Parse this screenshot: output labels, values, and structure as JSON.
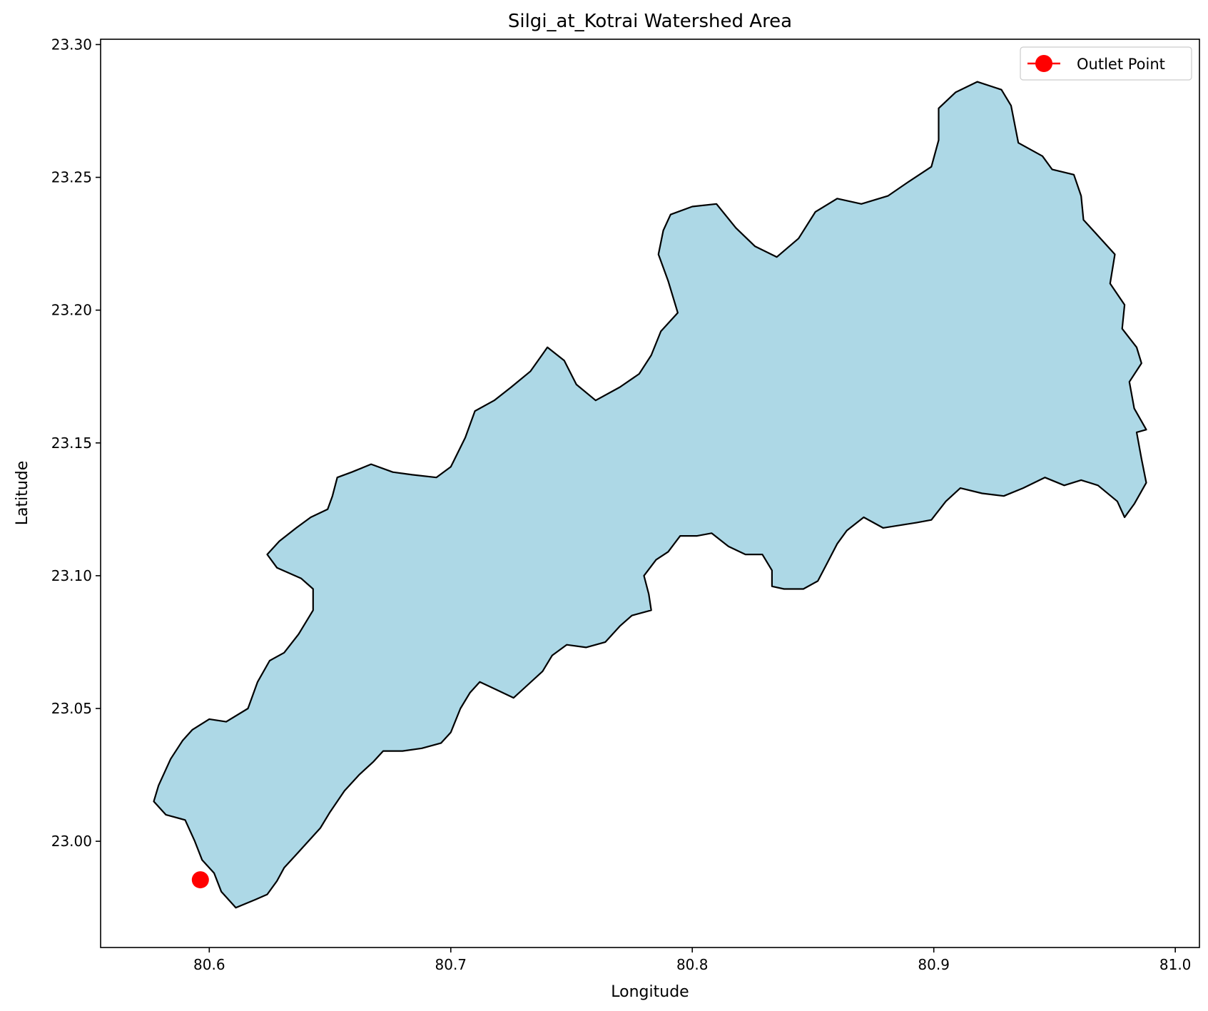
{
  "chart_data": {
    "type": "map",
    "title": "Silgi_at_Kotrai Watershed Area",
    "xlabel": "Longitude",
    "ylabel": "Latitude",
    "xlim": [
      80.555,
      81.01
    ],
    "ylim": [
      22.96,
      23.302
    ],
    "xticks": [
      80.6,
      80.7,
      80.8,
      80.9,
      81.0
    ],
    "xtick_labels": [
      "80.6",
      "80.7",
      "80.8",
      "80.9",
      "81.0"
    ],
    "yticks": [
      23.0,
      23.05,
      23.1,
      23.15,
      23.2,
      23.25,
      23.3
    ],
    "ytick_labels": [
      "23.00",
      "23.05",
      "23.10",
      "23.15",
      "23.20",
      "23.25",
      "23.30"
    ],
    "grid": false,
    "legend": {
      "position": "top-right",
      "entries": [
        {
          "label": "Outlet Point",
          "color": "#ff0000",
          "marker": "circle"
        }
      ]
    },
    "watershed": {
      "fill": "#add8e6",
      "edge": "#000000",
      "boundary": [
        [
          80.611,
          22.975
        ],
        [
          80.619,
          22.978
        ],
        [
          80.624,
          22.98
        ],
        [
          80.628,
          22.985
        ],
        [
          80.631,
          22.99
        ],
        [
          80.636,
          22.995
        ],
        [
          80.641,
          23.0
        ],
        [
          80.646,
          23.005
        ],
        [
          80.65,
          23.011
        ],
        [
          80.656,
          23.019
        ],
        [
          80.662,
          23.025
        ],
        [
          80.668,
          23.03
        ],
        [
          80.672,
          23.034
        ],
        [
          80.68,
          23.034
        ],
        [
          80.688,
          23.035
        ],
        [
          80.696,
          23.037
        ],
        [
          80.7,
          23.041
        ],
        [
          80.704,
          23.05
        ],
        [
          80.708,
          23.056
        ],
        [
          80.712,
          23.06
        ],
        [
          80.719,
          23.057
        ],
        [
          80.726,
          23.054
        ],
        [
          80.732,
          23.059
        ],
        [
          80.738,
          23.064
        ],
        [
          80.742,
          23.07
        ],
        [
          80.748,
          23.074
        ],
        [
          80.756,
          23.073
        ],
        [
          80.764,
          23.075
        ],
        [
          80.77,
          23.081
        ],
        [
          80.775,
          23.085
        ],
        [
          80.783,
          23.087
        ],
        [
          80.782,
          23.093
        ],
        [
          80.78,
          23.1
        ],
        [
          80.785,
          23.106
        ],
        [
          80.79,
          23.109
        ],
        [
          80.795,
          23.115
        ],
        [
          80.802,
          23.115
        ],
        [
          80.808,
          23.116
        ],
        [
          80.815,
          23.111
        ],
        [
          80.822,
          23.108
        ],
        [
          80.829,
          23.108
        ],
        [
          80.833,
          23.102
        ],
        [
          80.833,
          23.096
        ],
        [
          80.838,
          23.095
        ],
        [
          80.846,
          23.095
        ],
        [
          80.852,
          23.098
        ],
        [
          80.856,
          23.105
        ],
        [
          80.86,
          23.112
        ],
        [
          80.864,
          23.117
        ],
        [
          80.871,
          23.122
        ],
        [
          80.879,
          23.118
        ],
        [
          80.886,
          23.119
        ],
        [
          80.893,
          23.12
        ],
        [
          80.899,
          23.121
        ],
        [
          80.905,
          23.128
        ],
        [
          80.911,
          23.133
        ],
        [
          80.92,
          23.131
        ],
        [
          80.929,
          23.13
        ],
        [
          80.937,
          23.133
        ],
        [
          80.946,
          23.137
        ],
        [
          80.954,
          23.134
        ],
        [
          80.961,
          23.136
        ],
        [
          80.968,
          23.134
        ],
        [
          80.976,
          23.128
        ],
        [
          80.979,
          23.122
        ],
        [
          80.983,
          23.127
        ],
        [
          80.988,
          23.135
        ],
        [
          80.986,
          23.144
        ],
        [
          80.984,
          23.154
        ],
        [
          80.988,
          23.155
        ],
        [
          80.983,
          23.163
        ],
        [
          80.981,
          23.173
        ],
        [
          80.986,
          23.18
        ],
        [
          80.984,
          23.186
        ],
        [
          80.978,
          23.193
        ],
        [
          80.979,
          23.202
        ],
        [
          80.973,
          23.21
        ],
        [
          80.975,
          23.221
        ],
        [
          80.967,
          23.229
        ],
        [
          80.962,
          23.234
        ],
        [
          80.961,
          23.243
        ],
        [
          80.958,
          23.251
        ],
        [
          80.949,
          23.253
        ],
        [
          80.945,
          23.258
        ],
        [
          80.935,
          23.263
        ],
        [
          80.932,
          23.277
        ],
        [
          80.928,
          23.283
        ],
        [
          80.918,
          23.286
        ],
        [
          80.909,
          23.282
        ],
        [
          80.902,
          23.276
        ],
        [
          80.902,
          23.264
        ],
        [
          80.899,
          23.254
        ],
        [
          80.889,
          23.248
        ],
        [
          80.881,
          23.243
        ],
        [
          80.87,
          23.24
        ],
        [
          80.86,
          23.242
        ],
        [
          80.851,
          23.237
        ],
        [
          80.844,
          23.227
        ],
        [
          80.835,
          23.22
        ],
        [
          80.826,
          23.224
        ],
        [
          80.818,
          23.231
        ],
        [
          80.81,
          23.24
        ],
        [
          80.8,
          23.239
        ],
        [
          80.791,
          23.236
        ],
        [
          80.788,
          23.23
        ],
        [
          80.786,
          23.221
        ],
        [
          80.79,
          23.211
        ],
        [
          80.794,
          23.199
        ],
        [
          80.787,
          23.192
        ],
        [
          80.783,
          23.183
        ],
        [
          80.778,
          23.176
        ],
        [
          80.77,
          23.171
        ],
        [
          80.76,
          23.166
        ],
        [
          80.752,
          23.172
        ],
        [
          80.747,
          23.181
        ],
        [
          80.74,
          23.186
        ],
        [
          80.733,
          23.177
        ],
        [
          80.725,
          23.171
        ],
        [
          80.718,
          23.166
        ],
        [
          80.71,
          23.162
        ],
        [
          80.706,
          23.152
        ],
        [
          80.7,
          23.141
        ],
        [
          80.694,
          23.137
        ],
        [
          80.684,
          23.138
        ],
        [
          80.676,
          23.139
        ],
        [
          80.667,
          23.142
        ],
        [
          80.659,
          23.139
        ],
        [
          80.653,
          23.137
        ],
        [
          80.651,
          23.13
        ],
        [
          80.649,
          23.125
        ],
        [
          80.642,
          23.122
        ],
        [
          80.636,
          23.118
        ],
        [
          80.629,
          23.113
        ],
        [
          80.624,
          23.108
        ],
        [
          80.628,
          23.103
        ],
        [
          80.638,
          23.099
        ],
        [
          80.643,
          23.095
        ],
        [
          80.643,
          23.087
        ],
        [
          80.637,
          23.078
        ],
        [
          80.631,
          23.071
        ],
        [
          80.625,
          23.068
        ],
        [
          80.62,
          23.06
        ],
        [
          80.616,
          23.05
        ],
        [
          80.607,
          23.045
        ],
        [
          80.6,
          23.046
        ],
        [
          80.593,
          23.042
        ],
        [
          80.589,
          23.038
        ],
        [
          80.584,
          23.031
        ],
        [
          80.579,
          23.021
        ],
        [
          80.577,
          23.015
        ],
        [
          80.582,
          23.01
        ],
        [
          80.59,
          23.008
        ],
        [
          80.594,
          23.0
        ],
        [
          80.597,
          22.993
        ],
        [
          80.602,
          22.988
        ],
        [
          80.605,
          22.981
        ]
      ]
    },
    "outlet": {
      "label": "Outlet Point",
      "lon": 80.5963,
      "lat": 22.9855,
      "color": "#ff0000"
    }
  }
}
